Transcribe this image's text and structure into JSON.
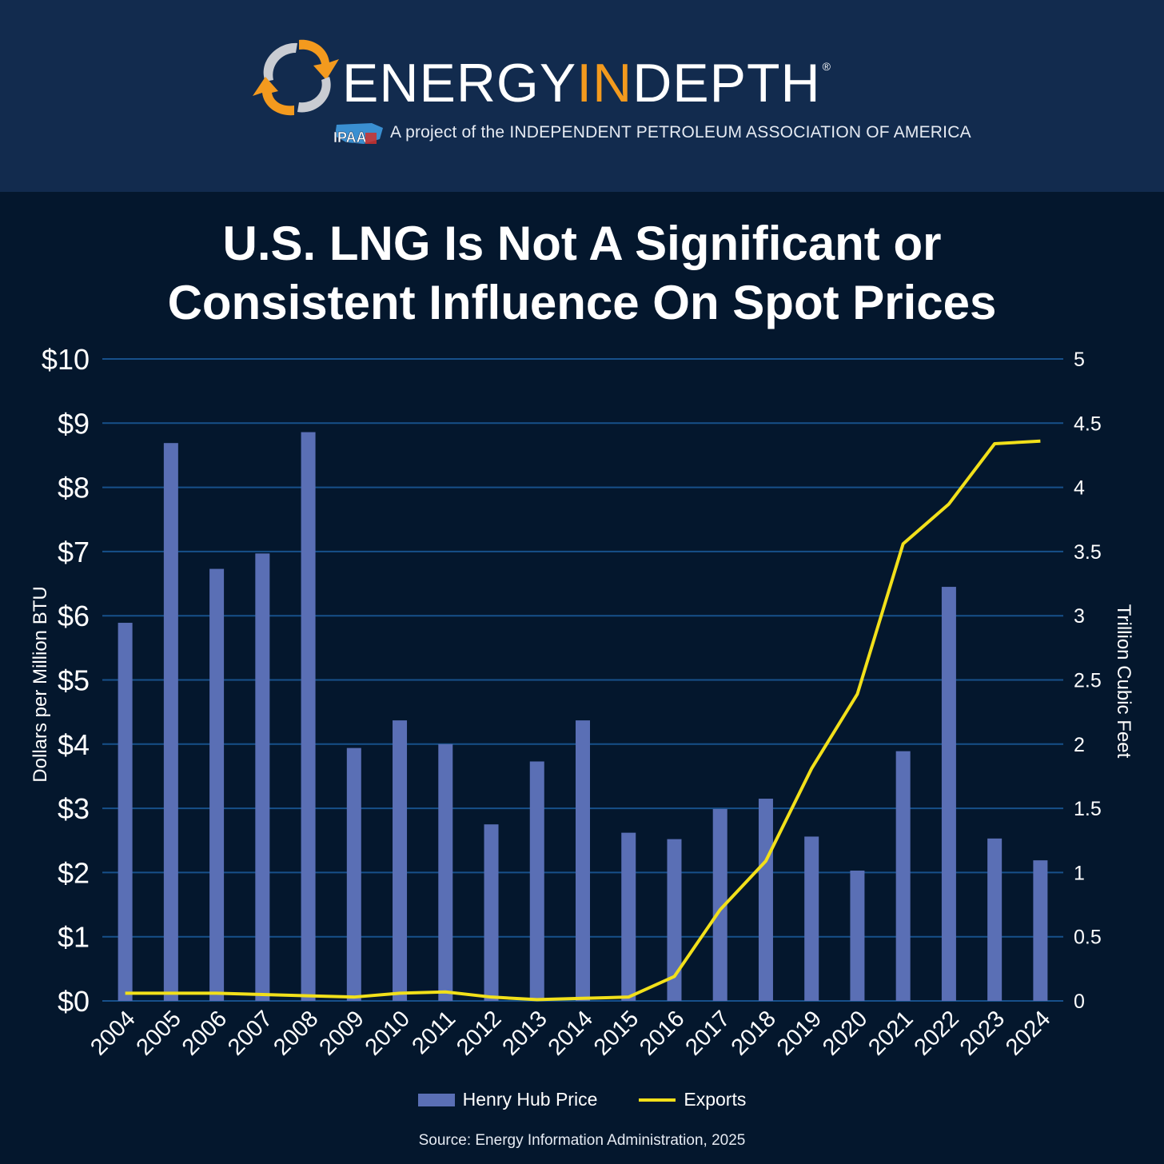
{
  "header": {
    "brand_part1": "ENERGY",
    "brand_part2": "IN",
    "brand_part3": "DEPTH",
    "registered": "®",
    "tagline": "A project of the INDEPENDENT PETROLEUM ASSOCIATION OF AMERICA",
    "ipaa_label": "IPAA",
    "colors": {
      "header_bg": "#122b4e",
      "accent": "#f39a1e"
    },
    "icons": [
      "energy-swirl-logo-icon",
      "ipaa-logo-icon"
    ]
  },
  "title_line1": "U.S. LNG Is Not A Significant or",
  "title_line2": "Consistent Influence On Spot Prices",
  "source": "Source: Energy Information Administration, 2025",
  "chart_data": {
    "type": "bar",
    "title": "U.S. LNG Is Not A Significant or Consistent Influence On Spot Prices",
    "categories": [
      "2004",
      "2005",
      "2006",
      "2007",
      "2008",
      "2009",
      "2010",
      "2011",
      "2012",
      "2013",
      "2014",
      "2015",
      "2016",
      "2017",
      "2018",
      "2019",
      "2020",
      "2021",
      "2022",
      "2023",
      "2024"
    ],
    "series": [
      {
        "name": "Henry Hub Price",
        "type": "bar",
        "axis": "left",
        "color": "#5a6fb5",
        "values": [
          5.89,
          8.69,
          6.73,
          6.97,
          8.86,
          3.94,
          4.37,
          4.0,
          2.75,
          3.73,
          4.37,
          2.62,
          2.52,
          2.99,
          3.15,
          2.56,
          2.03,
          3.89,
          6.45,
          2.53,
          2.19
        ]
      },
      {
        "name": "Exports",
        "type": "line",
        "axis": "right",
        "color": "#f2e01a",
        "values": [
          0.06,
          0.06,
          0.06,
          0.05,
          0.04,
          0.03,
          0.06,
          0.07,
          0.03,
          0.01,
          0.02,
          0.03,
          0.19,
          0.71,
          1.09,
          1.81,
          2.39,
          3.56,
          3.87,
          4.34,
          4.36
        ]
      }
    ],
    "ylabel": "Dollars per Million BTU",
    "ylabel_right": "Trillion Cubic Feet",
    "ylim": [
      0,
      10
    ],
    "ylim_right": [
      0,
      5
    ],
    "yticks": [
      "$0",
      "$1",
      "$2",
      "$3",
      "$4",
      "$5",
      "$6",
      "$7",
      "$8",
      "$9",
      "$10"
    ],
    "yticks_right": [
      "0",
      "0.5",
      "1",
      "1.5",
      "2",
      "2.5",
      "3",
      "3.5",
      "4",
      "4.5",
      "5"
    ],
    "grid": true,
    "legend_position": "bottom",
    "colors": {
      "background": "#04172d",
      "gridline": "#17508a"
    }
  }
}
